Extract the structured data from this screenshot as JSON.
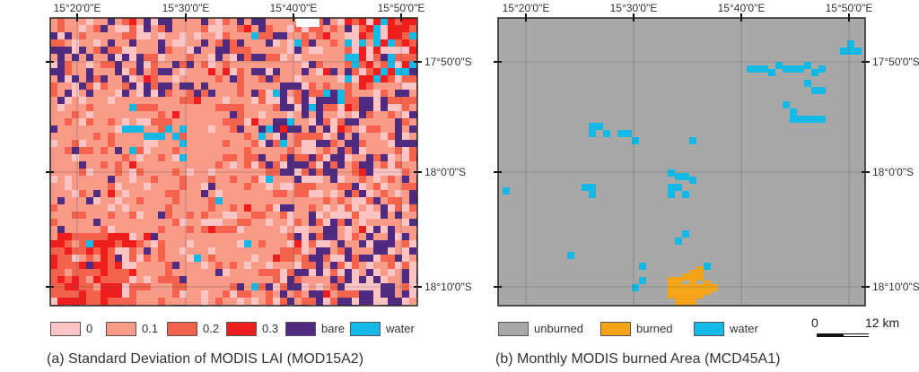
{
  "panel_a": {
    "caption": "(a) Standard Deviation of MODIS LAI (MOD15A2)",
    "top_labels": [
      "15°20'0\"E",
      "15°30'0\"E",
      "15°40'0\"E",
      "15°50'0\"E"
    ],
    "right_labels": [
      "17°50'0\"S",
      "18°0'0\"S",
      "18°10'0\"S"
    ],
    "legend": [
      {
        "label": "0",
        "color": "#fcc5c5"
      },
      {
        "label": "0.1",
        "color": "#f79a87"
      },
      {
        "label": "0.2",
        "color": "#f2624d"
      },
      {
        "label": "0.3",
        "color": "#ee1e1e"
      },
      {
        "label": "bare",
        "color": "#4f2b7f"
      },
      {
        "label": "water",
        "color": "#16b9e6"
      }
    ]
  },
  "panel_b": {
    "caption": "(b) Monthly MODIS burned Area (MCD45A1)",
    "top_labels": [
      "15°20'0\"E",
      "15°30'0\"E",
      "15°40'0\"E",
      "15°50'0\"E"
    ],
    "right_labels": [
      "17°50'0\"S",
      "18°0'0\"S",
      "18°10'0\"S"
    ],
    "legend": [
      {
        "label": "unburned",
        "color": "#a8a8a8"
      },
      {
        "label": "burned",
        "color": "#f4a418"
      },
      {
        "label": "water",
        "color": "#16b9e6"
      }
    ],
    "scale_bar": {
      "zero_label": "0",
      "end_label": "12 km"
    }
  }
}
